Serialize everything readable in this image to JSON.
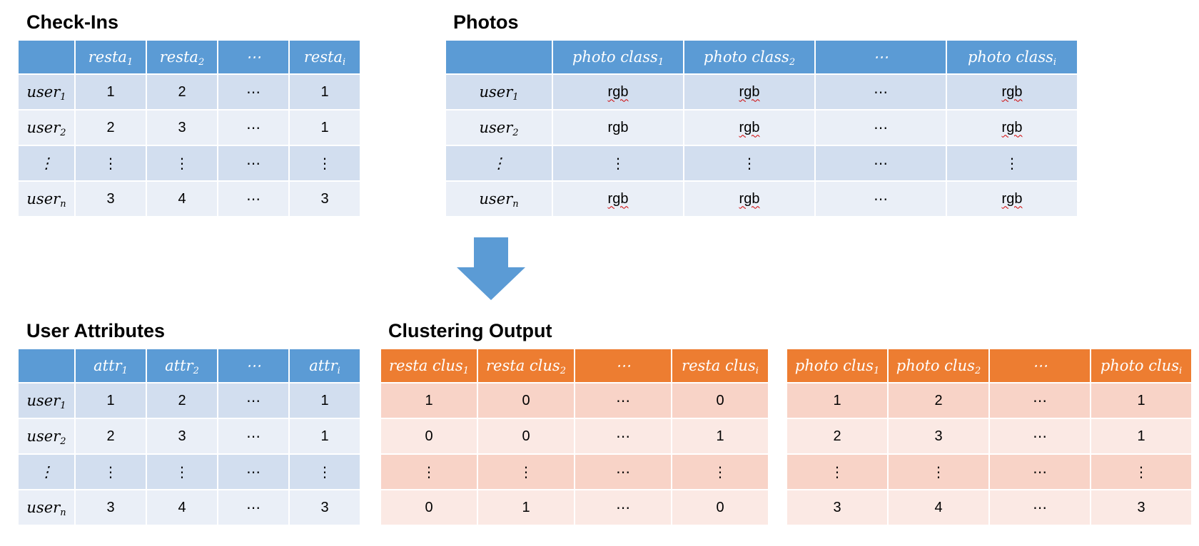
{
  "checkins": {
    "title": "Check-Ins",
    "header": [
      {
        "base": "",
        "sub": ""
      },
      {
        "base": "resta",
        "sub": "1"
      },
      {
        "base": "resta",
        "sub": "2"
      },
      {
        "base": "⋯",
        "sub": ""
      },
      {
        "base": "resta",
        "sub": "i"
      }
    ],
    "rows": [
      {
        "label": {
          "base": "user",
          "sub": "1"
        },
        "cells": [
          "1",
          "2",
          "⋯",
          "1"
        ]
      },
      {
        "label": {
          "base": "user",
          "sub": "2"
        },
        "cells": [
          "2",
          "3",
          "⋯",
          "1"
        ]
      },
      {
        "label": {
          "base": "⋮",
          "sub": ""
        },
        "cells": [
          "⋮",
          "⋮",
          "⋯",
          "⋮"
        ]
      },
      {
        "label": {
          "base": "user",
          "sub": "n"
        },
        "cells": [
          "3",
          "4",
          "⋯",
          "3"
        ]
      }
    ]
  },
  "photos": {
    "title": "Photos",
    "header": [
      {
        "base": "",
        "sub": ""
      },
      {
        "base": "photo class",
        "sub": "1"
      },
      {
        "base": "photo class",
        "sub": "2"
      },
      {
        "base": "⋯",
        "sub": ""
      },
      {
        "base": "photo class",
        "sub": "i"
      }
    ],
    "rows": [
      {
        "label": {
          "base": "user",
          "sub": "1"
        },
        "cells": [
          "rgb",
          "rgb",
          "⋯",
          "rgb"
        ]
      },
      {
        "label": {
          "base": "user",
          "sub": "2"
        },
        "cells": [
          "rgb",
          "rgb",
          "⋯",
          "rgb"
        ]
      },
      {
        "label": {
          "base": "⋮",
          "sub": ""
        },
        "cells": [
          "⋮",
          "⋮",
          "⋯",
          "⋮"
        ]
      },
      {
        "label": {
          "base": "user",
          "sub": "n"
        },
        "cells": [
          "rgb",
          "rgb",
          "⋯",
          "rgb"
        ]
      }
    ]
  },
  "user_attributes": {
    "title": "User Attributes",
    "header": [
      {
        "base": "",
        "sub": ""
      },
      {
        "base": "attr",
        "sub": "1"
      },
      {
        "base": "attr",
        "sub": "2"
      },
      {
        "base": "⋯",
        "sub": ""
      },
      {
        "base": "attr",
        "sub": "i"
      }
    ],
    "rows": [
      {
        "label": {
          "base": "user",
          "sub": "1"
        },
        "cells": [
          "1",
          "2",
          "⋯",
          "1"
        ]
      },
      {
        "label": {
          "base": "user",
          "sub": "2"
        },
        "cells": [
          "2",
          "3",
          "⋯",
          "1"
        ]
      },
      {
        "label": {
          "base": "⋮",
          "sub": ""
        },
        "cells": [
          "⋮",
          "⋮",
          "⋯",
          "⋮"
        ]
      },
      {
        "label": {
          "base": "user",
          "sub": "n"
        },
        "cells": [
          "3",
          "4",
          "⋯",
          "3"
        ]
      }
    ]
  },
  "clustering": {
    "title": "Clustering Output",
    "resta_table": {
      "header": [
        {
          "base": "resta clus",
          "sub": "1"
        },
        {
          "base": "resta clus",
          "sub": "2"
        },
        {
          "base": "⋯",
          "sub": ""
        },
        {
          "base": "resta clus",
          "sub": "i"
        }
      ],
      "rows": [
        [
          "1",
          "0",
          "⋯",
          "0"
        ],
        [
          "0",
          "0",
          "⋯",
          "1"
        ],
        [
          "⋮",
          "⋮",
          "⋯",
          "⋮"
        ],
        [
          "0",
          "1",
          "⋯",
          "0"
        ]
      ]
    },
    "photo_table": {
      "header": [
        {
          "base": "photo clus",
          "sub": "1"
        },
        {
          "base": "photo clus",
          "sub": "2"
        },
        {
          "base": "⋯",
          "sub": ""
        },
        {
          "base": "photo clus",
          "sub": "i"
        }
      ],
      "rows": [
        [
          "1",
          "2",
          "⋯",
          "1"
        ],
        [
          "2",
          "3",
          "⋯",
          "1"
        ],
        [
          "⋮",
          "⋮",
          "⋯",
          "⋮"
        ],
        [
          "3",
          "4",
          "⋯",
          "3"
        ]
      ]
    }
  },
  "colors": {
    "blue_header": "#5b9bd5",
    "blue_row_dark": "#d2deef",
    "blue_row_light": "#eaeff7",
    "orange_header": "#ed7d31",
    "orange_row_dark": "#f8d3c7",
    "orange_row_light": "#fbe9e4",
    "arrow": "#5b9bd5"
  },
  "icons": {
    "flow_arrow": "down-arrow-icon"
  }
}
